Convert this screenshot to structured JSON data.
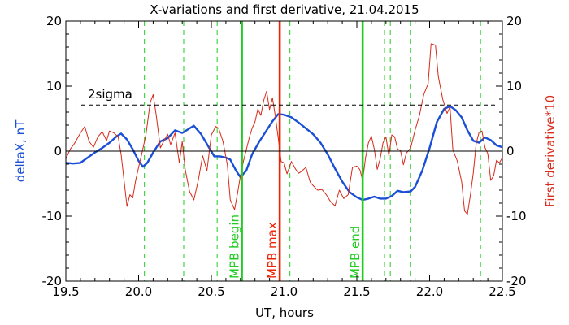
{
  "chart_data": {
    "type": "line",
    "title": "X-variations and first derivative, 21.04.2015",
    "xlabel": "UT, hours",
    "ylabel_left": "deltaX, nT",
    "ylabel_right": "First derivative*10",
    "xlim": [
      19.5,
      22.5
    ],
    "ylim": [
      -20,
      20
    ],
    "x_ticks": [
      "19.5",
      "20.0",
      "20.5",
      "21.0",
      "21.5",
      "22.0",
      "22.5"
    ],
    "y_ticks_left": [
      "-20",
      "-10",
      "0",
      "10",
      "20"
    ],
    "y_ticks_right": [
      "-20",
      "-10",
      "0",
      "10",
      "20"
    ],
    "threshold": {
      "label": "2sigma",
      "value": 7.1
    },
    "zero_line": 0,
    "colors": {
      "deltaX": "#1a4fd6",
      "derivative": "#d62a1a",
      "mpb_markers": "#22cc22",
      "mpb_max": "#ee2200",
      "dashed_green": "#22cc22"
    },
    "markers": [
      {
        "label": "MPB begin",
        "x": 20.71,
        "color": "#22cc22"
      },
      {
        "label": "MPB max",
        "x": 20.97,
        "color": "#ee2200"
      },
      {
        "label": "MPB end",
        "x": 21.54,
        "color": "#22cc22"
      }
    ],
    "dashed_lines_x": [
      19.57,
      20.04,
      20.31,
      20.54,
      21.04,
      21.69,
      21.73,
      21.87,
      22.35
    ],
    "series": [
      {
        "name": "deltaX",
        "color": "#1a4fd6",
        "points": [
          [
            19.5,
            -1.8
          ],
          [
            19.55,
            -1.9
          ],
          [
            19.6,
            -1.8
          ],
          [
            19.65,
            -1.0
          ],
          [
            19.7,
            -0.2
          ],
          [
            19.75,
            0.5
          ],
          [
            19.8,
            1.3
          ],
          [
            19.85,
            2.3
          ],
          [
            19.88,
            2.7
          ],
          [
            19.92,
            1.8
          ],
          [
            19.96,
            0.3
          ],
          [
            20.0,
            -1.5
          ],
          [
            20.03,
            -2.4
          ],
          [
            20.06,
            -1.8
          ],
          [
            20.1,
            -0.2
          ],
          [
            20.15,
            1.5
          ],
          [
            20.2,
            2.0
          ],
          [
            20.25,
            3.2
          ],
          [
            20.3,
            2.8
          ],
          [
            20.35,
            3.5
          ],
          [
            20.38,
            3.9
          ],
          [
            20.43,
            2.6
          ],
          [
            20.48,
            0.7
          ],
          [
            20.52,
            -0.8
          ],
          [
            20.56,
            -0.8
          ],
          [
            20.6,
            -1.0
          ],
          [
            20.63,
            -1.3
          ],
          [
            20.67,
            -3.0
          ],
          [
            20.7,
            -4.0
          ],
          [
            20.74,
            -3.0
          ],
          [
            20.78,
            -0.5
          ],
          [
            20.83,
            1.5
          ],
          [
            20.88,
            3.2
          ],
          [
            20.92,
            4.6
          ],
          [
            20.96,
            5.7
          ],
          [
            21.0,
            5.6
          ],
          [
            21.05,
            5.2
          ],
          [
            21.1,
            4.4
          ],
          [
            21.15,
            3.5
          ],
          [
            21.2,
            2.6
          ],
          [
            21.25,
            1.3
          ],
          [
            21.3,
            -0.5
          ],
          [
            21.35,
            -2.7
          ],
          [
            21.4,
            -4.7
          ],
          [
            21.45,
            -6.3
          ],
          [
            21.5,
            -7.1
          ],
          [
            21.54,
            -7.5
          ],
          [
            21.58,
            -7.3
          ],
          [
            21.62,
            -7.0
          ],
          [
            21.66,
            -7.3
          ],
          [
            21.7,
            -7.3
          ],
          [
            21.74,
            -6.9
          ],
          [
            21.78,
            -6.1
          ],
          [
            21.82,
            -6.3
          ],
          [
            21.87,
            -6.2
          ],
          [
            21.9,
            -5.5
          ],
          [
            21.95,
            -3.0
          ],
          [
            22.0,
            0.5
          ],
          [
            22.05,
            4.5
          ],
          [
            22.1,
            6.5
          ],
          [
            22.14,
            6.9
          ],
          [
            22.18,
            6.3
          ],
          [
            22.22,
            5.2
          ],
          [
            22.26,
            3.2
          ],
          [
            22.3,
            1.6
          ],
          [
            22.34,
            1.3
          ],
          [
            22.38,
            2.1
          ],
          [
            22.42,
            1.7
          ],
          [
            22.46,
            0.9
          ],
          [
            22.5,
            0.6
          ]
        ]
      },
      {
        "name": "First derivative*10",
        "color": "#d62a1a",
        "points": [
          [
            19.5,
            -1.2
          ],
          [
            19.53,
            0.3
          ],
          [
            19.56,
            1.2
          ],
          [
            19.6,
            2.8
          ],
          [
            19.63,
            3.8
          ],
          [
            19.66,
            1.5
          ],
          [
            19.69,
            0.6
          ],
          [
            19.72,
            2.2
          ],
          [
            19.75,
            3.0
          ],
          [
            19.78,
            1.6
          ],
          [
            19.8,
            3.1
          ],
          [
            19.83,
            2.8
          ],
          [
            19.86,
            2.2
          ],
          [
            19.88,
            -0.5
          ],
          [
            19.9,
            -4.5
          ],
          [
            19.92,
            -8.5
          ],
          [
            19.94,
            -6.7
          ],
          [
            19.96,
            -7.2
          ],
          [
            19.98,
            -4.5
          ],
          [
            20.0,
            -2.5
          ],
          [
            20.02,
            -0.6
          ],
          [
            20.05,
            2.5
          ],
          [
            20.08,
            7.5
          ],
          [
            20.1,
            8.7
          ],
          [
            20.12,
            5.7
          ],
          [
            20.15,
            0.5
          ],
          [
            20.17,
            1.4
          ],
          [
            20.2,
            2.6
          ],
          [
            20.22,
            1.0
          ],
          [
            20.25,
            2.8
          ],
          [
            20.28,
            -1.8
          ],
          [
            20.3,
            1.5
          ],
          [
            20.32,
            -2.8
          ],
          [
            20.35,
            -6.2
          ],
          [
            20.38,
            -7.5
          ],
          [
            20.41,
            -4.5
          ],
          [
            20.44,
            -0.7
          ],
          [
            20.47,
            -3.0
          ],
          [
            20.5,
            2.5
          ],
          [
            20.53,
            3.8
          ],
          [
            20.55,
            3.5
          ],
          [
            20.58,
            1.5
          ],
          [
            20.61,
            -2.1
          ],
          [
            20.63,
            -7.5
          ],
          [
            20.66,
            -9.0
          ],
          [
            20.68,
            -6.5
          ],
          [
            20.7,
            -3.8
          ],
          [
            20.72,
            -1.6
          ],
          [
            20.74,
            0.2
          ],
          [
            20.76,
            2.0
          ],
          [
            20.78,
            3.5
          ],
          [
            20.8,
            4.5
          ],
          [
            20.82,
            6.5
          ],
          [
            20.84,
            5.5
          ],
          [
            20.86,
            7.8
          ],
          [
            20.88,
            9.2
          ],
          [
            20.9,
            6.4
          ],
          [
            20.92,
            8.2
          ],
          [
            20.94,
            5.3
          ],
          [
            20.96,
            2.0
          ],
          [
            20.98,
            -1.6
          ],
          [
            21.0,
            -1.8
          ],
          [
            21.02,
            -3.5
          ],
          [
            21.05,
            -1.6
          ],
          [
            21.08,
            -2.8
          ],
          [
            21.1,
            -3.4
          ],
          [
            21.12,
            -3.1
          ],
          [
            21.15,
            -2.5
          ],
          [
            21.18,
            -4.8
          ],
          [
            21.2,
            -5.3
          ],
          [
            21.23,
            -6.0
          ],
          [
            21.26,
            -5.9
          ],
          [
            21.29,
            -6.7
          ],
          [
            21.32,
            -7.8
          ],
          [
            21.35,
            -8.4
          ],
          [
            21.38,
            -6.0
          ],
          [
            21.41,
            -7.3
          ],
          [
            21.44,
            -6.7
          ],
          [
            21.47,
            -2.5
          ],
          [
            21.5,
            -2.3
          ],
          [
            21.52,
            -2.8
          ],
          [
            21.54,
            -4.5
          ],
          [
            21.56,
            -1.0
          ],
          [
            21.58,
            1.3
          ],
          [
            21.6,
            2.3
          ],
          [
            21.62,
            0.3
          ],
          [
            21.64,
            -2.8
          ],
          [
            21.66,
            -1.2
          ],
          [
            21.68,
            1.3
          ],
          [
            21.7,
            2.2
          ],
          [
            21.72,
            -0.7
          ],
          [
            21.74,
            2.5
          ],
          [
            21.76,
            2.2
          ],
          [
            21.78,
            0.3
          ],
          [
            21.8,
            0.1
          ],
          [
            21.82,
            -2.1
          ],
          [
            21.84,
            -0.3
          ],
          [
            21.87,
            0.5
          ],
          [
            21.9,
            3.2
          ],
          [
            21.93,
            5.5
          ],
          [
            21.96,
            8.7
          ],
          [
            21.99,
            10.4
          ],
          [
            22.01,
            16.5
          ],
          [
            22.04,
            16.3
          ],
          [
            22.06,
            11.5
          ],
          [
            22.09,
            8.0
          ],
          [
            22.12,
            5.8
          ],
          [
            22.14,
            6.8
          ],
          [
            22.16,
            0.2
          ],
          [
            22.19,
            -1.5
          ],
          [
            22.22,
            -4.7
          ],
          [
            22.24,
            -9.2
          ],
          [
            22.26,
            -9.7
          ],
          [
            22.28,
            -6.8
          ],
          [
            22.3,
            -3.4
          ],
          [
            22.32,
            1.2
          ],
          [
            22.34,
            2.9
          ],
          [
            22.36,
            3.1
          ],
          [
            22.38,
            0.6
          ],
          [
            22.4,
            -0.4
          ],
          [
            22.42,
            -4.5
          ],
          [
            22.44,
            -3.8
          ],
          [
            22.46,
            -1.4
          ],
          [
            22.48,
            -1.8
          ],
          [
            22.5,
            -1.0
          ]
        ]
      }
    ]
  }
}
